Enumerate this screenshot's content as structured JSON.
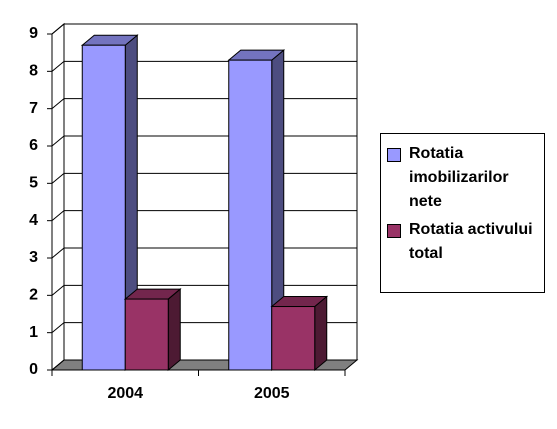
{
  "chart_data": {
    "type": "bar3d",
    "categories": [
      "2004",
      "2005"
    ],
    "series": [
      {
        "name": "Rotatia imobilizarilor nete",
        "color": "#9999ff",
        "values": [
          8.7,
          8.3
        ]
      },
      {
        "name": "Rotatia activului total",
        "color": "#993366",
        "values": [
          1.9,
          1.7
        ]
      }
    ],
    "ylim": [
      0,
      9
    ],
    "yticks": [
      0,
      1,
      2,
      3,
      4,
      5,
      6,
      7,
      8,
      9
    ],
    "grid": true,
    "legend": "right"
  }
}
